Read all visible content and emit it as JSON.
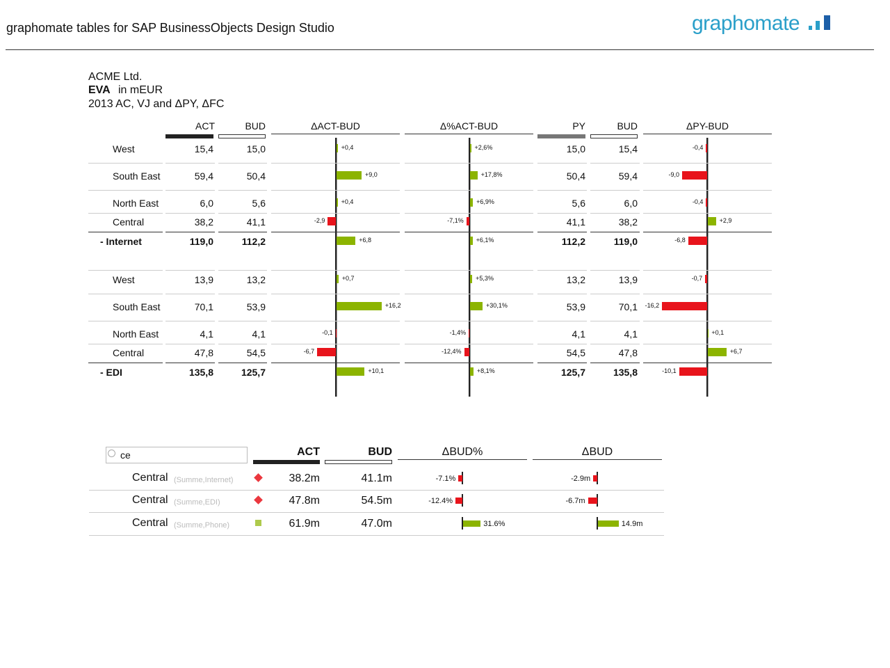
{
  "header": {
    "title": "graphomate tables for SAP BusinessObjects Design Studio",
    "logo": "graphomate"
  },
  "table1": {
    "company": "ACME Ltd.",
    "measure": "EVA",
    "unit": "in mEUR",
    "scenario": "2013 AC, VJ and ΔPY, ΔFC",
    "columns": [
      "ACT",
      "BUD",
      "ΔACT-BUD",
      "Δ%ACT-BUD",
      "PY",
      "BUD",
      "ΔPY-BUD"
    ],
    "groups": [
      {
        "rows": [
          [
            "West",
            "15,4",
            "15,0",
            "+0,4",
            "+2,6%",
            "15,0",
            "15,4",
            "-0,4"
          ],
          [
            "South East",
            "59,4",
            "50,4",
            "+9,0",
            "+17,8%",
            "50,4",
            "59,4",
            "-9,0"
          ],
          [
            "North East",
            "6,0",
            "5,6",
            "+0,4",
            "+6,9%",
            "5,6",
            "6,0",
            "-0,4"
          ],
          [
            "Central",
            "38,2",
            "41,1",
            "-2,9",
            "-7,1%",
            "41,1",
            "38,2",
            "+2,9"
          ]
        ],
        "total": [
          "- Internet",
          "119,0",
          "112,2",
          "+6,8",
          "+6,1%",
          "112,2",
          "119,0",
          "-6,8"
        ]
      },
      {
        "rows": [
          [
            "West",
            "13,9",
            "13,2",
            "+0,7",
            "+5,3%",
            "13,2",
            "13,9",
            "-0,7"
          ],
          [
            "South East",
            "70,1",
            "53,9",
            "+16,2",
            "+30,1%",
            "53,9",
            "70,1",
            "-16,2"
          ],
          [
            "North East",
            "4,1",
            "4,1",
            "-0,1",
            "-1,4%",
            "4,1",
            "4,1",
            "+0,1"
          ],
          [
            "Central",
            "47,8",
            "54,5",
            "-6,7",
            "-12,4%",
            "54,5",
            "47,8",
            "+6,7"
          ]
        ],
        "total": [
          "- EDI",
          "135,8",
          "125,7",
          "+10,1",
          "+8,1%",
          "125,7",
          "135,8",
          "-10,1"
        ]
      }
    ]
  },
  "table2": {
    "search": "ce",
    "columns": [
      "ACT",
      "BUD",
      "ΔBUD%",
      "ΔBUD"
    ],
    "rows": [
      {
        "name": "Central",
        "detail": "(Summe,Internet)",
        "act": "38.2m",
        "bud": "41.1m",
        "dpct": "-7.1%",
        "dabs": "-2.9m"
      },
      {
        "name": "Central",
        "detail": "(Summe,EDI)",
        "act": "47.8m",
        "bud": "54.5m",
        "dpct": "-12.4%",
        "dabs": "-6.7m"
      },
      {
        "name": "Central",
        "detail": "(Summe,Phone)",
        "act": "61.9m",
        "bud": "47.0m",
        "dpct": "31.6%",
        "dabs": "14.9m"
      }
    ]
  }
}
